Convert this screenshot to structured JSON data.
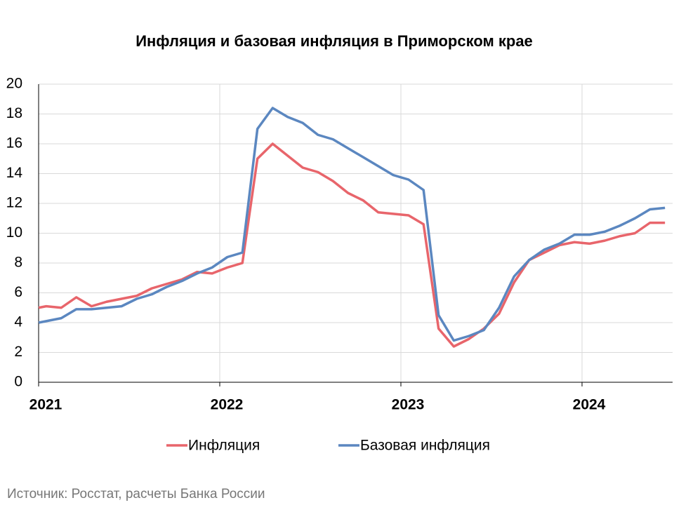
{
  "chart_data": {
    "type": "line",
    "title": "Инфляция и базовая инфляция в Приморском крае",
    "source": "Источник: Росстат, расчеты Банка России",
    "x": [
      2021,
      2021.042,
      2021.125,
      2021.208,
      2021.292,
      2021.375,
      2021.458,
      2021.542,
      2021.625,
      2021.708,
      2021.792,
      2021.875,
      2021.958,
      2022.042,
      2022.125,
      2022.208,
      2022.292,
      2022.375,
      2022.458,
      2022.542,
      2022.625,
      2022.708,
      2022.792,
      2022.875,
      2022.958,
      2023.042,
      2023.125,
      2023.208,
      2023.292,
      2023.375,
      2023.458,
      2023.542,
      2023.625,
      2023.708,
      2023.792,
      2023.875,
      2023.958,
      2024.042,
      2024.125,
      2024.208,
      2024.292,
      2024.375,
      2024.458
    ],
    "series": [
      {
        "name": "Инфляция",
        "color": "#e8656b",
        "values": [
          5.0,
          5.1,
          5.0,
          5.7,
          5.1,
          5.4,
          5.6,
          5.8,
          6.3,
          6.6,
          6.9,
          7.4,
          7.3,
          7.7,
          8.0,
          15.0,
          16.0,
          15.2,
          14.4,
          14.1,
          13.5,
          12.7,
          12.2,
          11.4,
          11.3,
          11.2,
          10.6,
          3.6,
          2.4,
          2.9,
          3.6,
          4.6,
          6.7,
          8.2,
          8.7,
          9.2,
          9.4,
          9.3,
          9.5,
          9.8,
          10.0,
          10.7,
          10.7
        ]
      },
      {
        "name": "Базовая инфляция",
        "color": "#5b87c0",
        "values": [
          4.0,
          4.1,
          4.3,
          4.9,
          4.9,
          5.0,
          5.1,
          5.6,
          5.9,
          6.4,
          6.8,
          7.3,
          7.7,
          8.4,
          8.7,
          17.0,
          18.4,
          17.8,
          17.4,
          16.6,
          16.3,
          15.7,
          15.1,
          14.5,
          13.9,
          13.6,
          12.9,
          4.5,
          2.8,
          3.1,
          3.5,
          5.0,
          7.1,
          8.2,
          8.9,
          9.3,
          9.9,
          9.9,
          10.1,
          10.5,
          11.0,
          11.6,
          11.7
        ]
      }
    ],
    "xlim": [
      2021,
      2024.5
    ],
    "xticks": [
      2021,
      2022,
      2023,
      2024
    ],
    "ylim": [
      0,
      20
    ],
    "yticks": [
      0,
      2,
      4,
      6,
      8,
      10,
      12,
      14,
      16,
      18,
      20
    ],
    "grid": true,
    "legend": "bottom"
  }
}
